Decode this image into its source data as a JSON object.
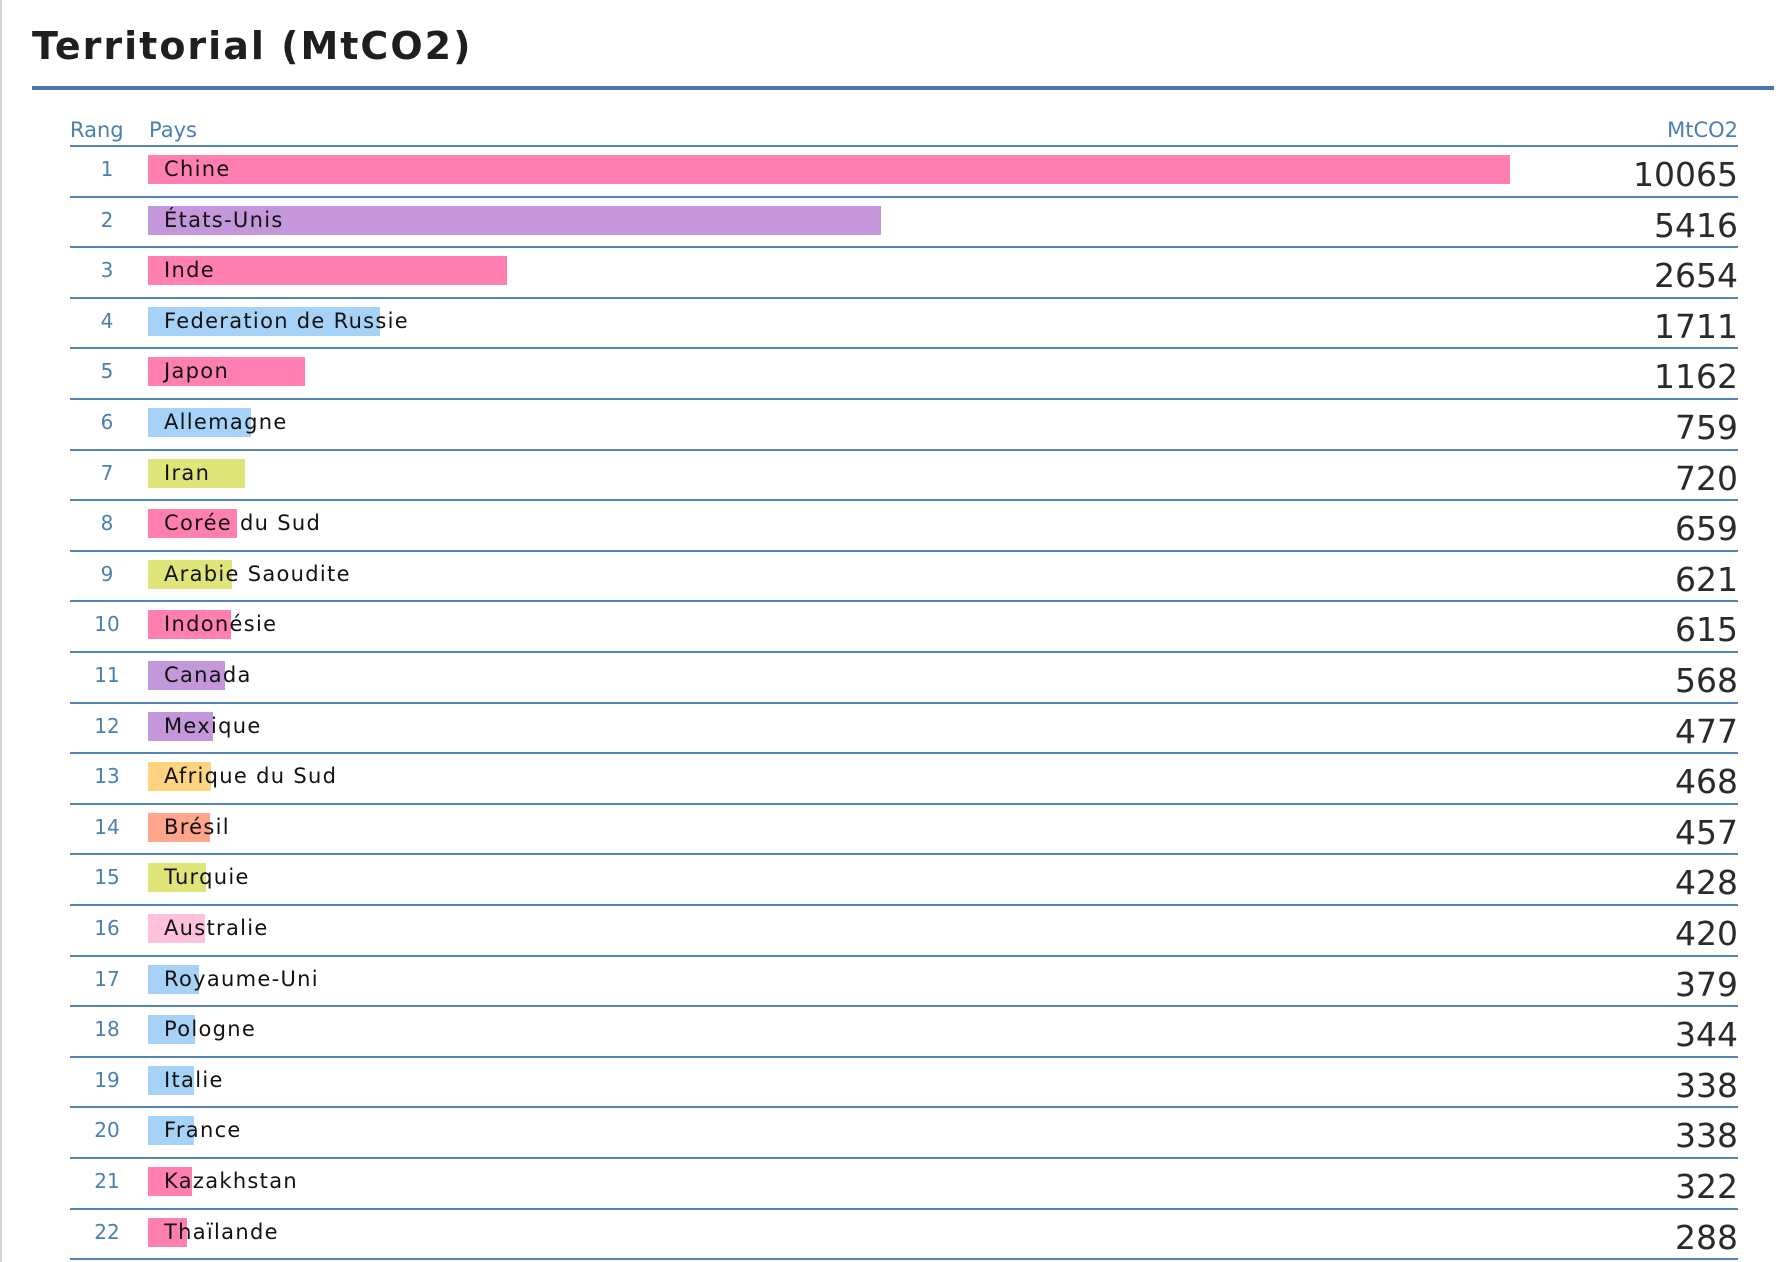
{
  "chart_data": {
    "type": "bar",
    "title": "Territorial (MtCO2)",
    "columns": {
      "rank": "Rang",
      "country": "Pays",
      "value": "MtCO2"
    },
    "xlim": [
      0,
      10065
    ],
    "rows": [
      {
        "rank": "1",
        "country": "Chine",
        "value": 10065,
        "color": "#ff80b0"
      },
      {
        "rank": "2",
        "country": "États-Unis",
        "value": 5416,
        "color": "#c497da"
      },
      {
        "rank": "3",
        "country": "Inde",
        "value": 2654,
        "color": "#ff80b0"
      },
      {
        "rank": "4",
        "country": "Federation de Russie",
        "value": 1711,
        "color": "#a6d2f7"
      },
      {
        "rank": "5",
        "country": "Japon",
        "value": 1162,
        "color": "#ff80b0"
      },
      {
        "rank": "6",
        "country": "Allemagne",
        "value": 759,
        "color": "#a6d2f7"
      },
      {
        "rank": "7",
        "country": "Iran",
        "value": 720,
        "color": "#e0e57a"
      },
      {
        "rank": "8",
        "country": "Corée du Sud",
        "value": 659,
        "color": "#ff80b0"
      },
      {
        "rank": "9",
        "country": "Arabie Saoudite",
        "value": 621,
        "color": "#e0e57a"
      },
      {
        "rank": "10",
        "country": "Indonésie",
        "value": 615,
        "color": "#ff80b0"
      },
      {
        "rank": "11",
        "country": "Canada",
        "value": 568,
        "color": "#c497da"
      },
      {
        "rank": "12",
        "country": "Mexique",
        "value": 477,
        "color": "#c497da"
      },
      {
        "rank": "13",
        "country": "Afrique du Sud",
        "value": 468,
        "color": "#ffd480"
      },
      {
        "rank": "14",
        "country": "Brésil",
        "value": 457,
        "color": "#ffa58c"
      },
      {
        "rank": "15",
        "country": "Turquie",
        "value": 428,
        "color": "#e0e57a"
      },
      {
        "rank": "16",
        "country": "Australie",
        "value": 420,
        "color": "#ffc1dc"
      },
      {
        "rank": "17",
        "country": "Royaume-Uni",
        "value": 379,
        "color": "#a6d2f7"
      },
      {
        "rank": "18",
        "country": "Pologne",
        "value": 344,
        "color": "#a6d2f7"
      },
      {
        "rank": "19",
        "country": "Italie",
        "value": 338,
        "color": "#a6d2f7"
      },
      {
        "rank": "20",
        "country": "France",
        "value": 338,
        "color": "#a6d2f7"
      },
      {
        "rank": "21",
        "country": "Kazakhstan",
        "value": 322,
        "color": "#ff80b0"
      },
      {
        "rank": "22",
        "country": "Thaïlande",
        "value": 288,
        "color": "#ff80b0"
      }
    ]
  }
}
